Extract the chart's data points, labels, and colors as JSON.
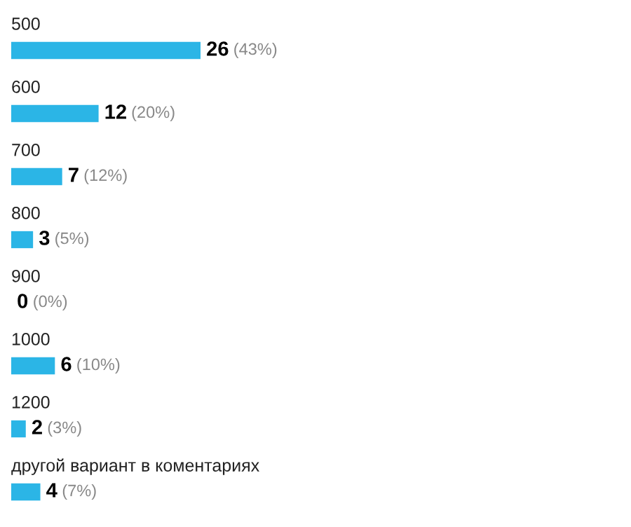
{
  "chart_data": {
    "type": "bar",
    "orientation": "horizontal",
    "categories": [
      "500",
      "600",
      "700",
      "800",
      "900",
      "1000",
      "1200",
      "другой вариант в коментариях"
    ],
    "values": [
      26,
      12,
      7,
      3,
      0,
      6,
      2,
      4
    ],
    "value_labels": [
      "26 (43%)",
      "12 (20%)",
      "7 (12%)",
      "3 (5%)",
      "0 (0%)",
      "6 (10%)",
      "2 (3%)",
      "4 (7%)"
    ],
    "color": "#2bb5e6"
  }
}
